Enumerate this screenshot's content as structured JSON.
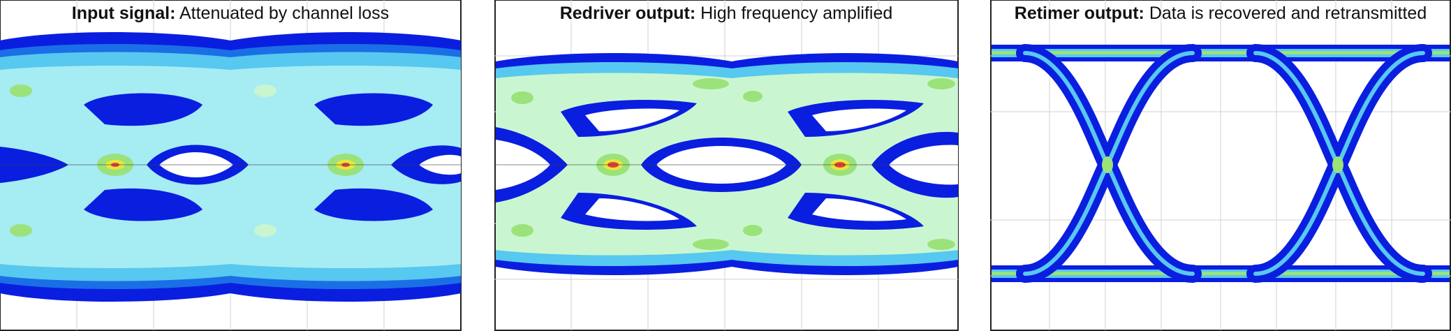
{
  "panels": [
    {
      "title_bold": "Input signal:",
      "title_rest": " Attenuated by channel loss",
      "chart_data": {
        "type": "heatmap",
        "subtype": "eye-diagram",
        "eye_state": "closed",
        "eyes": 2,
        "colormap": [
          "#0a1ee0",
          "#1a6fe6",
          "#57c8ef",
          "#a6ecf3",
          "#c9f6d0",
          "#9be27a",
          "#e6e83c",
          "#e8403a"
        ]
      }
    },
    {
      "title_bold": "Redriver output:",
      "title_rest": " High frequency amplified",
      "chart_data": {
        "type": "heatmap",
        "subtype": "eye-diagram",
        "eye_state": "partially open",
        "eyes": 2,
        "colormap": [
          "#0a1ee0",
          "#1a6fe6",
          "#57c8ef",
          "#a6ecf3",
          "#c9f6d0",
          "#9be27a",
          "#e6e83c",
          "#e8403a"
        ]
      }
    },
    {
      "title_bold": "Retimer output:",
      "title_rest": " Data is recovered and retransmitted",
      "chart_data": {
        "type": "heatmap",
        "subtype": "eye-diagram",
        "eye_state": "open",
        "eyes": 2,
        "colormap": [
          "#0a1ee0",
          "#1a6fe6",
          "#57c8ef",
          "#a6ecf3",
          "#c9f6d0",
          "#9be27a",
          "#e6e83c",
          "#e8403a"
        ]
      }
    }
  ]
}
